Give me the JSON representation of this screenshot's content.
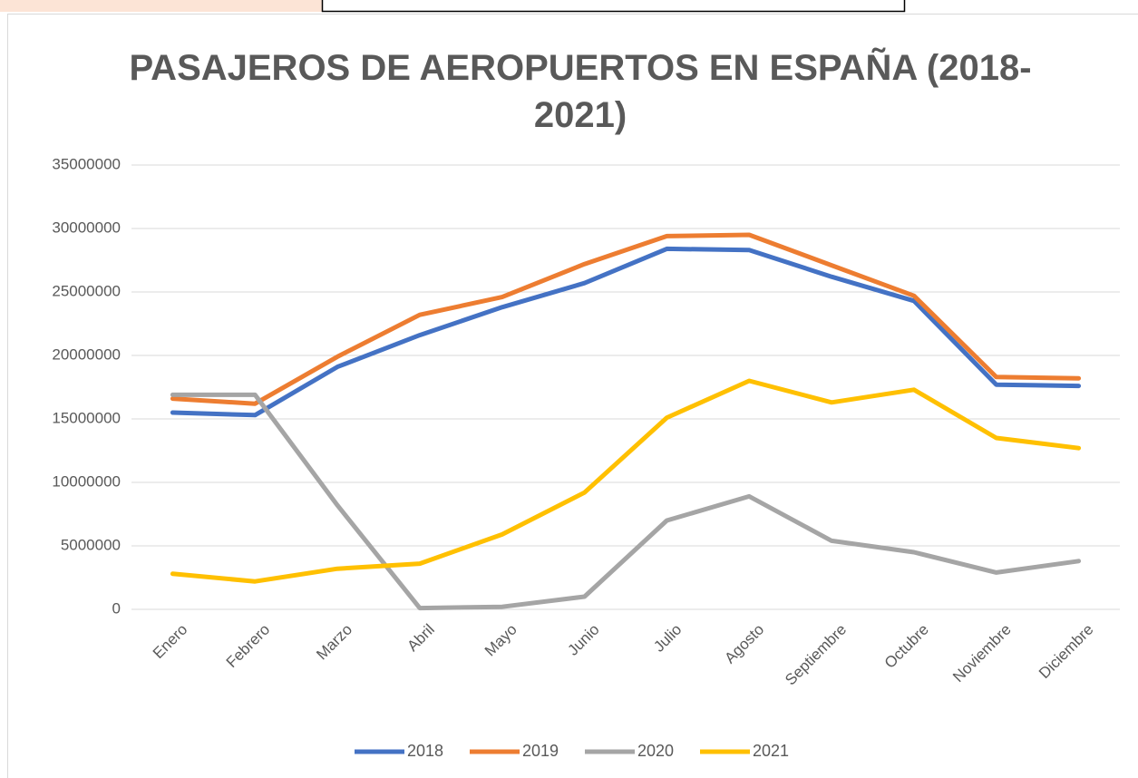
{
  "chart_data": {
    "type": "line",
    "title_lines": [
      "PASAJEROS DE AEROPUERTOS EN ESPAÑA (2018-",
      "2021)"
    ],
    "categories": [
      "Enero",
      "Febrero",
      "Marzo",
      "Abril",
      "Mayo",
      "Junio",
      "Julio",
      "Agosto",
      "Septiembre",
      "Octubre",
      "Noviembre",
      "Diciembre"
    ],
    "series": [
      {
        "name": "2018",
        "color": "#4472c4",
        "values": [
          15500000,
          15300000,
          19100000,
          21600000,
          23800000,
          25700000,
          28400000,
          28300000,
          26200000,
          24300000,
          17700000,
          17600000
        ]
      },
      {
        "name": "2019",
        "color": "#ed7d31",
        "values": [
          16600000,
          16200000,
          19900000,
          23200000,
          24600000,
          27200000,
          29400000,
          29500000,
          27100000,
          24700000,
          18300000,
          18200000
        ]
      },
      {
        "name": "2020",
        "color": "#a5a5a5",
        "values": [
          16900000,
          16900000,
          8200000,
          100000,
          200000,
          1000000,
          7000000,
          8900000,
          5400000,
          4500000,
          2900000,
          3800000
        ]
      },
      {
        "name": "2021",
        "color": "#ffc000",
        "values": [
          2800000,
          2200000,
          3200000,
          3600000,
          5900000,
          9200000,
          15100000,
          18000000,
          16300000,
          17300000,
          13500000,
          12700000
        ]
      }
    ],
    "ylim": [
      0,
      35000000
    ],
    "yticks": [
      0,
      5000000,
      10000000,
      15000000,
      20000000,
      25000000,
      30000000,
      35000000
    ],
    "grid": true,
    "legend": "bottom"
  }
}
